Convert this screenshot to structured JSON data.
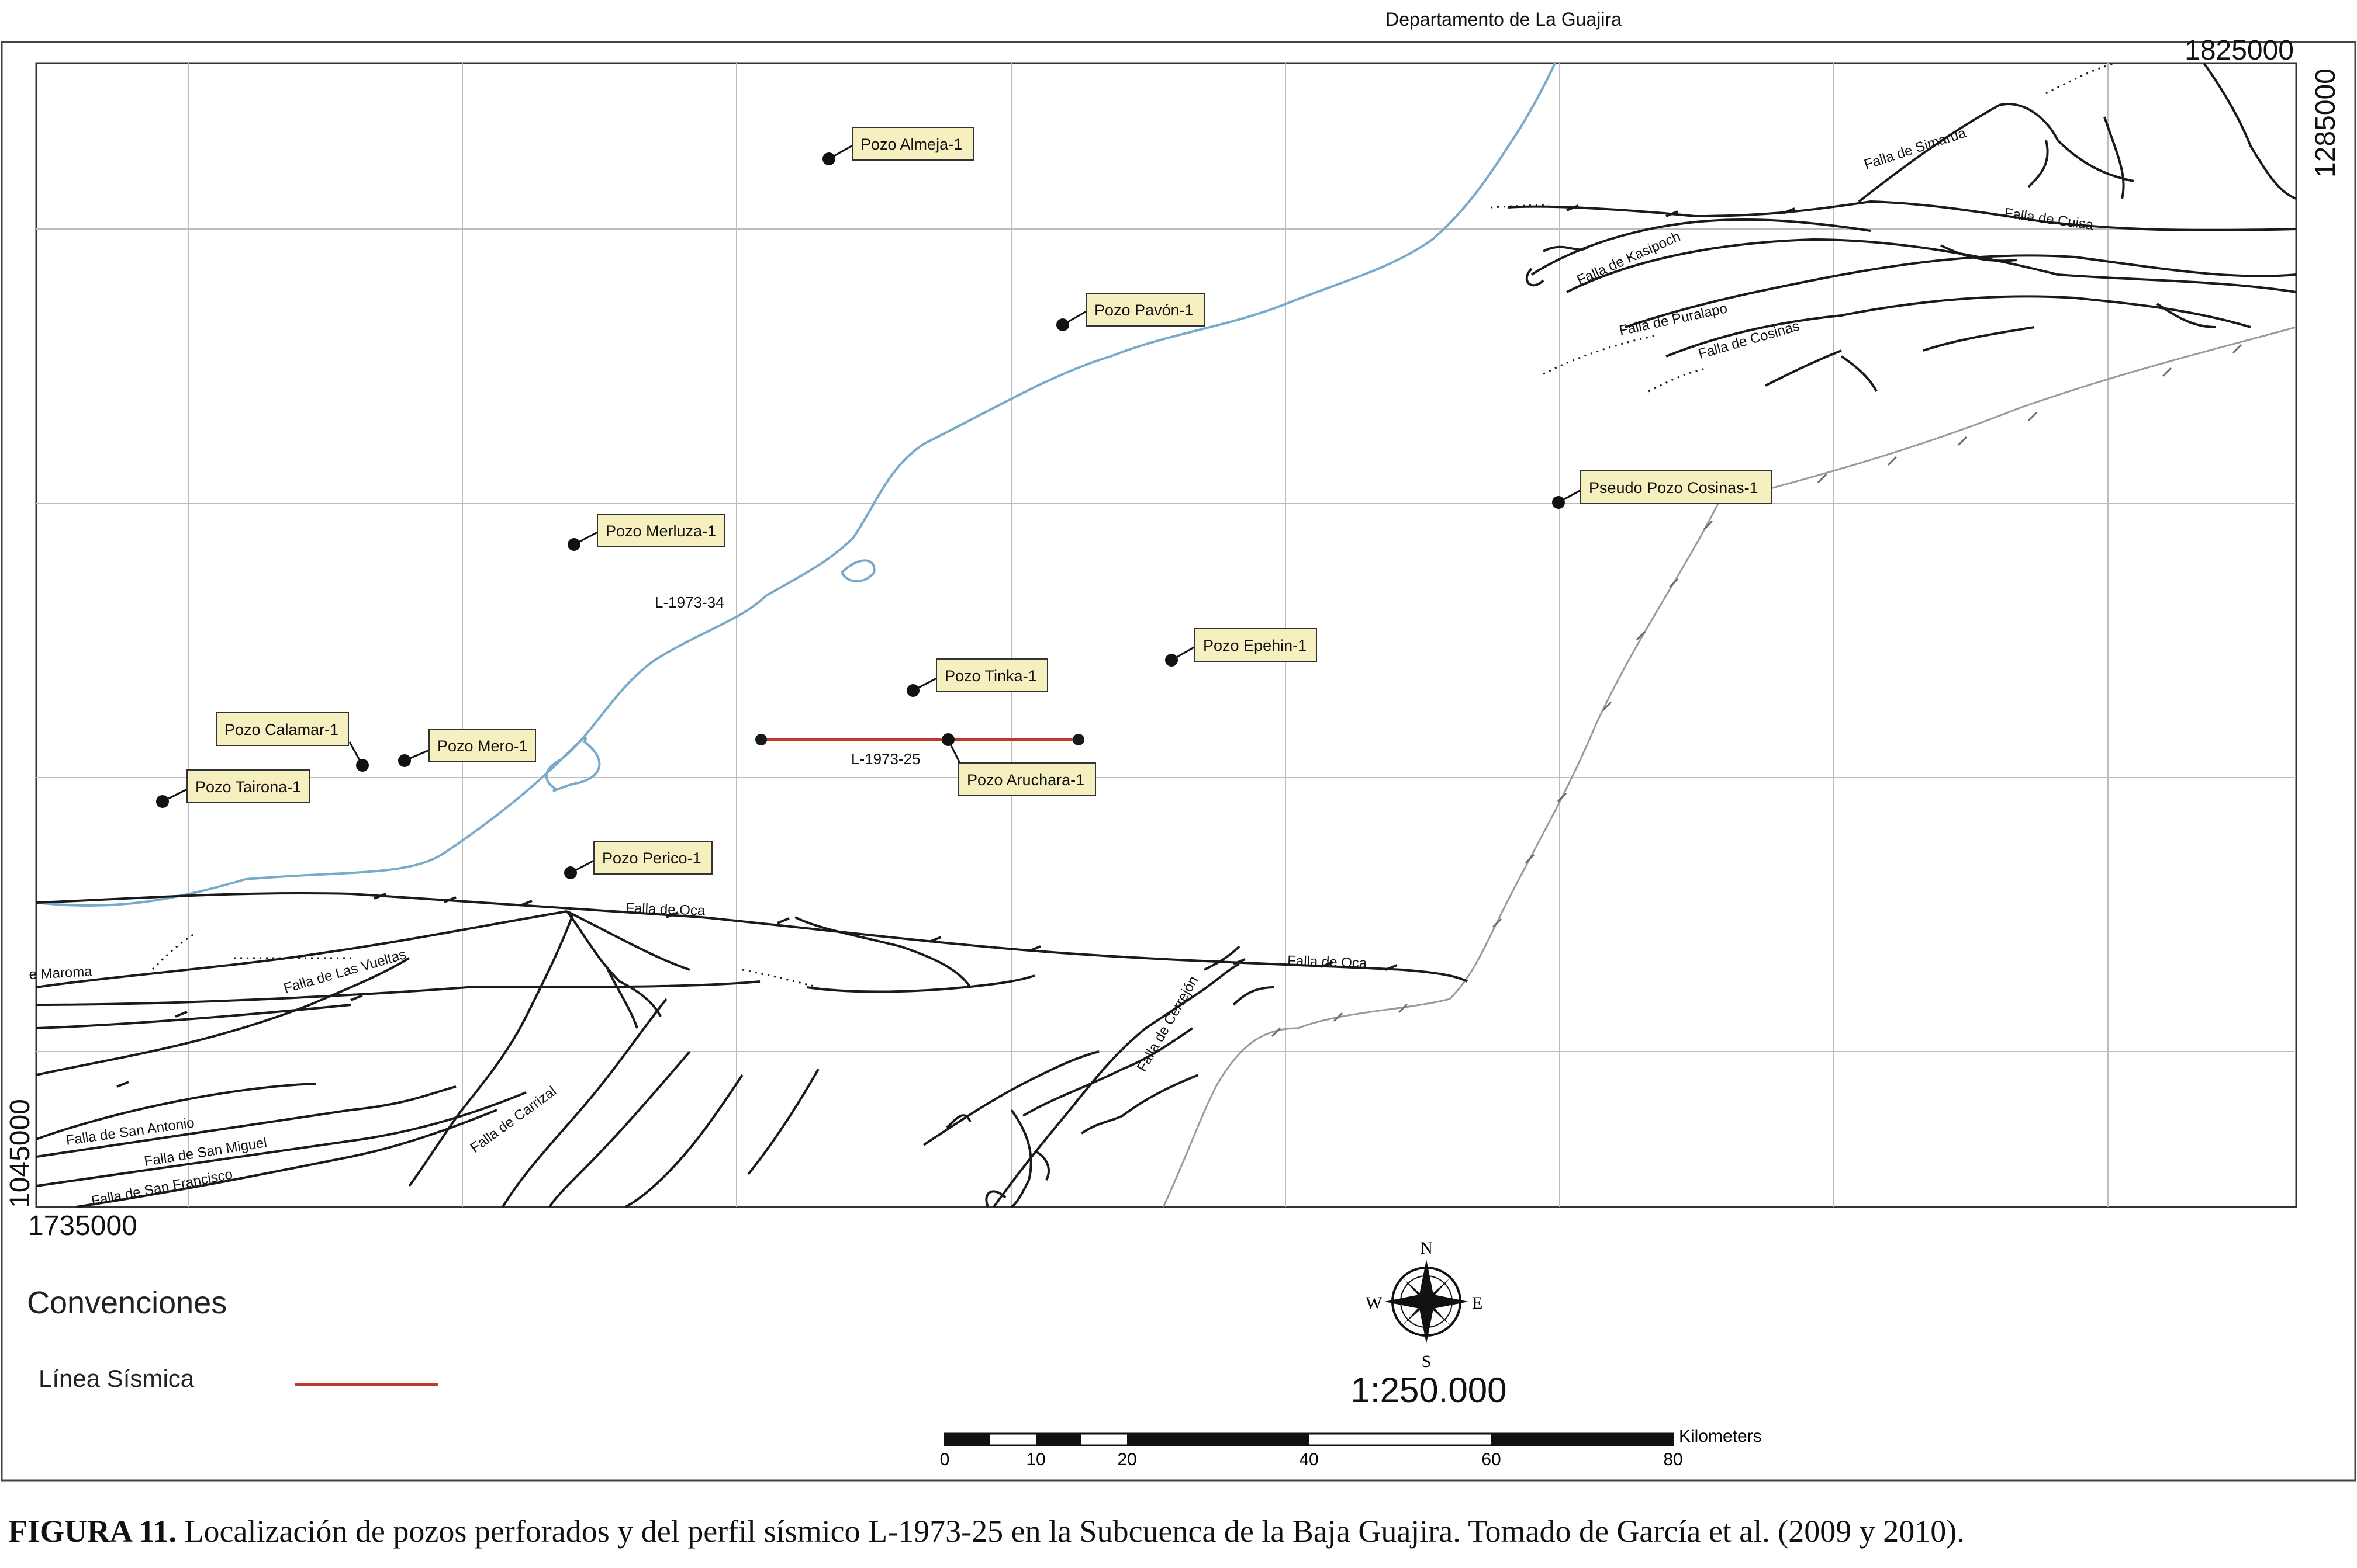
{
  "map": {
    "title": "Departamento de La Guajira",
    "coords": {
      "top_right_x": "1825000",
      "top_right_y": "1285000",
      "bottom_left_x": "1735000",
      "bottom_left_y": "1045000"
    },
    "wells": [
      {
        "name": "Pozo Almeja-1"
      },
      {
        "name": "Pozo Pavón-1"
      },
      {
        "name": "Pozo Merluza-1"
      },
      {
        "name": "Pozo Tinka-1"
      },
      {
        "name": "Pozo Epehin-1"
      },
      {
        "name": "Pozo Calamar-1"
      },
      {
        "name": "Pozo Mero-1"
      },
      {
        "name": "Pozo Tairona-1"
      },
      {
        "name": "Pozo Aruchara-1"
      },
      {
        "name": "Pozo Perico-1"
      },
      {
        "name": "Pseudo Pozo Cosinas-1"
      }
    ],
    "seismic_lines": [
      {
        "name": "L-1973-34"
      },
      {
        "name": "L-1973-25"
      }
    ],
    "faults": [
      {
        "name": "Falla de Simarua"
      },
      {
        "name": "Falla de Cuisa"
      },
      {
        "name": "Falla de Kasipoch"
      },
      {
        "name": "Falla de Puralapo"
      },
      {
        "name": "Falla de Cosinas"
      },
      {
        "name": "Falla de Oca"
      },
      {
        "name": "Falla de Oca"
      },
      {
        "name": "Falla de Las Vueltas"
      },
      {
        "name": "e Maroma"
      },
      {
        "name": "Falla de Cerrejón"
      },
      {
        "name": "Falla de Carrizal"
      },
      {
        "name": "Falla de San Antonio"
      },
      {
        "name": "Falla de San Miguel"
      },
      {
        "name": "Falla de San Francisco"
      }
    ],
    "compass": {
      "n": "N",
      "s": "S",
      "e": "E",
      "w": "W"
    },
    "scale_text": "1:250.000",
    "scalebar": {
      "ticks": [
        "0",
        "10",
        "20",
        "40",
        "60",
        "80"
      ],
      "unit": "Kilometers"
    },
    "colors": {
      "river": "#79aac9",
      "seismic_line": "#c0392b",
      "label_fill": "#f6efbf",
      "fault": "#1a1a1a",
      "border_road": "#9a9a9a"
    }
  },
  "legend": {
    "title": "Convenciones",
    "items": [
      {
        "label": "Línea Sísmica",
        "color": "#c0392b"
      }
    ]
  },
  "caption": {
    "label": "FIGURA 11.",
    "text": " Localización de pozos perforados y del perfil sísmico L-1973-25 en la Subcuenca de la Baja Guajira. Tomado de García et al. (2009 y 2010)."
  }
}
